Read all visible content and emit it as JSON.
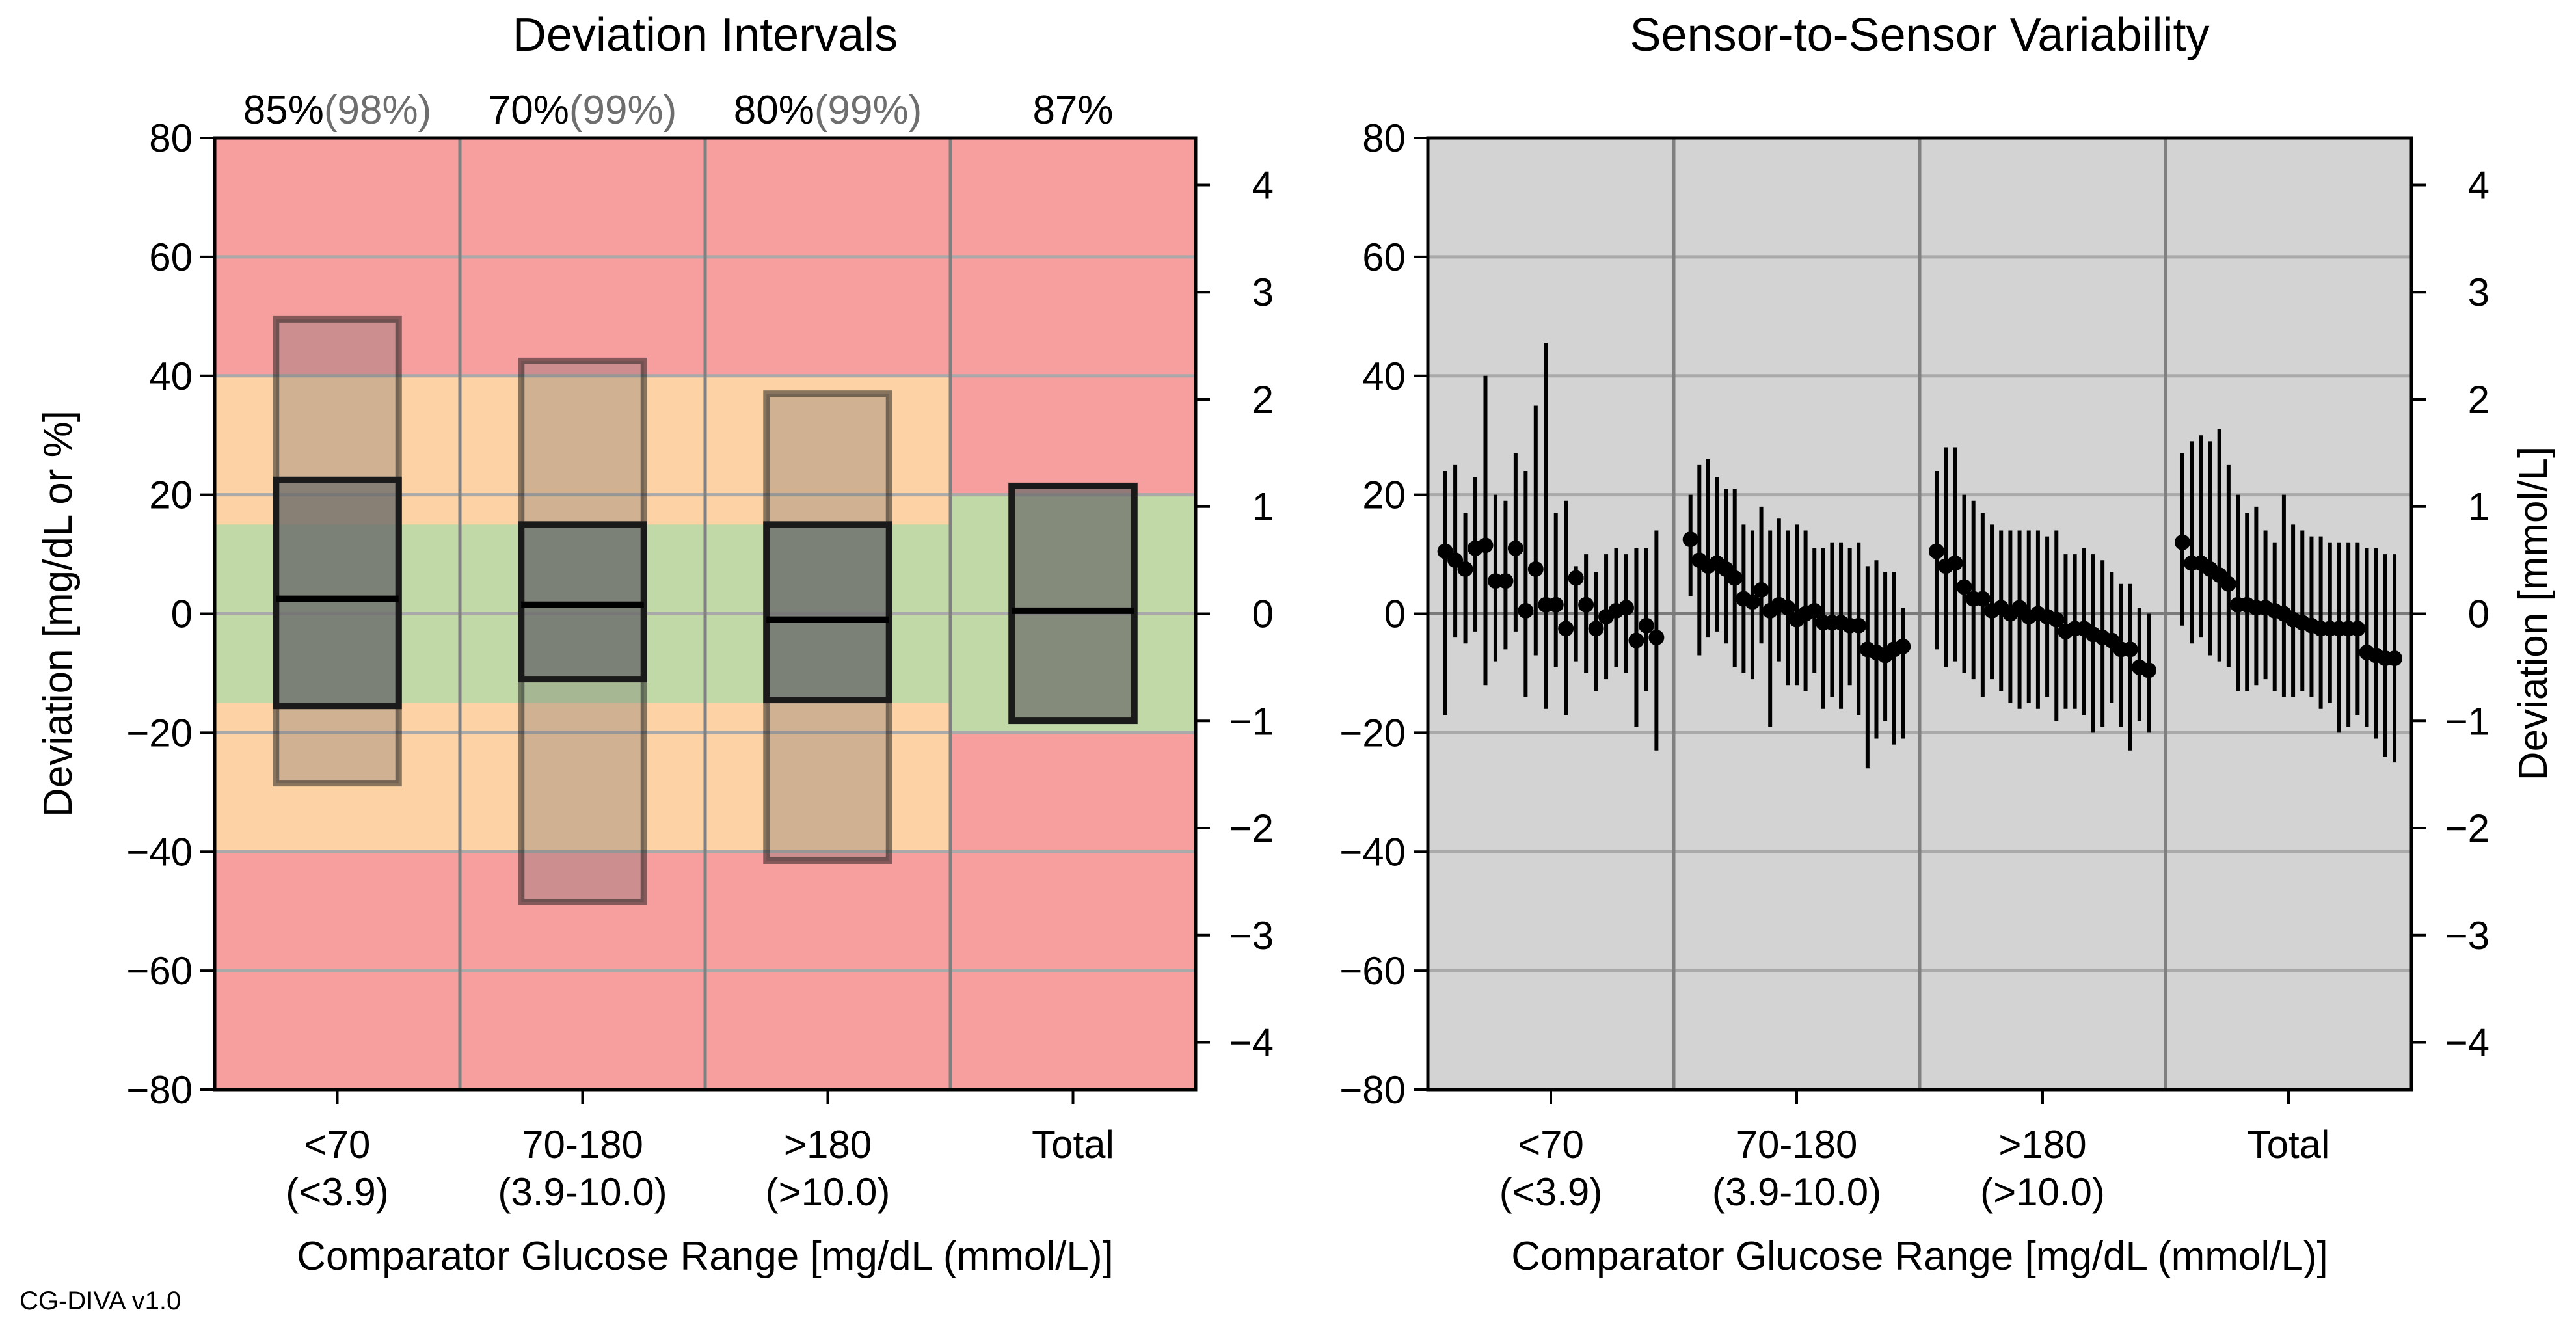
{
  "chart_data": [
    {
      "type": "box",
      "title": "Deviation Intervals",
      "xlabel": "Comparator Glucose Range [mg/dL (mmol/L)]",
      "ylabel": "Deviation [mg/dL or %]",
      "ylim": [
        -80,
        80
      ],
      "yticks": [
        "80",
        "60",
        "40",
        "20",
        "0",
        "−20",
        "−40",
        "−60",
        "−80"
      ],
      "secondary_axis": {
        "ticks": [
          "4",
          "3",
          "2",
          "1",
          "0",
          "−1",
          "−2",
          "−3",
          "−4"
        ]
      },
      "categories": [
        {
          "line1": "<70",
          "line2": "(<3.9)"
        },
        {
          "line1": "70-180",
          "line2": "(3.9-10.0)"
        },
        {
          "line1": ">180",
          "line2": "(>10.0)"
        },
        {
          "line1": "Total",
          "line2": ""
        }
      ],
      "percentages": [
        {
          "main": "85%",
          "secondary": "(98%)"
        },
        {
          "main": "70%",
          "secondary": "(99%)"
        },
        {
          "main": "80%",
          "secondary": "(99%)"
        },
        {
          "main": "87%",
          "secondary": ""
        }
      ],
      "zones": {
        "tight": [
          -15,
          15,
          -20,
          20
        ],
        "wide": [
          -40,
          40
        ],
        "colors": {
          "outer": "#f79e9e",
          "wide": "#fdd2a4",
          "tight": "#c1d9a6"
        }
      },
      "outer_boxes": [
        {
          "low": -28.5,
          "high": 49.5
        },
        {
          "low": -48.5,
          "high": 42.5
        },
        {
          "low": -41.5,
          "high": 37
        },
        null
      ],
      "inner_boxes": [
        {
          "low": -15.5,
          "median": 2.5,
          "high": 22.5
        },
        {
          "low": -11,
          "median": 1.5,
          "high": 15
        },
        {
          "low": -14.5,
          "median": -1,
          "high": 15
        },
        {
          "low": -18,
          "median": 0.5,
          "high": 21.5
        }
      ]
    },
    {
      "type": "errorbar",
      "title": "Sensor-to-Sensor Variability",
      "xlabel": "Comparator Glucose Range [mg/dL (mmol/L)]",
      "ylabel": "Deviation [mmol/L]",
      "ylim": [
        -80,
        80
      ],
      "yticks": [
        "80",
        "60",
        "40",
        "20",
        "0",
        "−20",
        "−40",
        "−60",
        "−80"
      ],
      "secondary_axis": {
        "ticks": [
          "4",
          "3",
          "2",
          "1",
          "0",
          "−1",
          "−2",
          "−3",
          "−4"
        ]
      },
      "categories": [
        {
          "line1": "<70",
          "line2": "(<3.9)"
        },
        {
          "line1": "70-180",
          "line2": "(3.9-10.0)"
        },
        {
          "line1": ">180",
          "line2": "(>10.0)"
        },
        {
          "line1": "Total",
          "line2": ""
        }
      ],
      "series": [
        {
          "group": "<70",
          "points": [
            {
              "y": 10.5,
              "low": -17,
              "high": 24
            },
            {
              "y": 9,
              "low": -4,
              "high": 25
            },
            {
              "y": 7.5,
              "low": -5,
              "high": 17
            },
            {
              "y": 11,
              "low": -3,
              "high": 23
            },
            {
              "y": 11.5,
              "low": -12,
              "high": 40
            },
            {
              "y": 5.5,
              "low": -8,
              "high": 20
            },
            {
              "y": 5.5,
              "low": -6,
              "high": 19
            },
            {
              "y": 11,
              "low": -3,
              "high": 27
            },
            {
              "y": 0.5,
              "low": -14,
              "high": 24
            },
            {
              "y": 7.5,
              "low": -7,
              "high": 35
            },
            {
              "y": 1.5,
              "low": -16,
              "high": 45.5
            },
            {
              "y": 1.5,
              "low": -9,
              "high": 17
            },
            {
              "y": -2.5,
              "low": -17,
              "high": 19
            },
            {
              "y": 6,
              "low": -8,
              "high": 8
            },
            {
              "y": 1.5,
              "low": -10,
              "high": 10
            },
            {
              "y": -2.5,
              "low": -13,
              "high": 7
            },
            {
              "y": -0.5,
              "low": -11,
              "high": 10
            },
            {
              "y": 0.5,
              "low": -9,
              "high": 11
            },
            {
              "y": 1,
              "low": -10,
              "high": 10
            },
            {
              "y": -4.5,
              "low": -19,
              "high": 11
            },
            {
              "y": -2,
              "low": -13,
              "high": 11
            },
            {
              "y": -4,
              "low": -23,
              "high": 14
            }
          ]
        },
        {
          "group": "70-180",
          "points": [
            {
              "y": 12.5,
              "low": 3,
              "high": 20
            },
            {
              "y": 9,
              "low": -7,
              "high": 25
            },
            {
              "y": 8,
              "low": -4,
              "high": 26
            },
            {
              "y": 8.5,
              "low": -3,
              "high": 23
            },
            {
              "y": 7.5,
              "low": -5,
              "high": 21
            },
            {
              "y": 6,
              "low": -9,
              "high": 21
            },
            {
              "y": 2.5,
              "low": -10,
              "high": 15
            },
            {
              "y": 2,
              "low": -11,
              "high": 14
            },
            {
              "y": 4,
              "low": -5,
              "high": 18
            },
            {
              "y": 0.5,
              "low": -19,
              "high": 14
            },
            {
              "y": 1.5,
              "low": -8,
              "high": 16
            },
            {
              "y": 1,
              "low": -12,
              "high": 14
            },
            {
              "y": -1,
              "low": -12,
              "high": 15
            },
            {
              "y": 0,
              "low": -13,
              "high": 14
            },
            {
              "y": 0.5,
              "low": -10,
              "high": 11
            },
            {
              "y": -1.5,
              "low": -16,
              "high": 11
            },
            {
              "y": -1.5,
              "low": -14,
              "high": 12
            },
            {
              "y": -1.5,
              "low": -16,
              "high": 12
            },
            {
              "y": -2,
              "low": -12,
              "high": 11
            },
            {
              "y": -2,
              "low": -17,
              "high": 12
            },
            {
              "y": -6,
              "low": -26,
              "high": 8
            },
            {
              "y": -6.5,
              "low": -21,
              "high": 9
            },
            {
              "y": -7,
              "low": -18,
              "high": 7
            },
            {
              "y": -6,
              "low": -22,
              "high": 7
            },
            {
              "y": -5.5,
              "low": -21,
              "high": 1
            }
          ]
        },
        {
          "group": ">180",
          "points": [
            {
              "y": 10.5,
              "low": -6,
              "high": 24
            },
            {
              "y": 8,
              "low": -9,
              "high": 28
            },
            {
              "y": 8.5,
              "low": -8,
              "high": 28
            },
            {
              "y": 4.5,
              "low": -10,
              "high": 20
            },
            {
              "y": 2.5,
              "low": -11,
              "high": 19
            },
            {
              "y": 2.5,
              "low": -14,
              "high": 17
            },
            {
              "y": 0.5,
              "low": -11,
              "high": 15
            },
            {
              "y": 1,
              "low": -13,
              "high": 14
            },
            {
              "y": 0,
              "low": -15,
              "high": 14
            },
            {
              "y": 1,
              "low": -16,
              "high": 14
            },
            {
              "y": -0.5,
              "low": -15,
              "high": 14
            },
            {
              "y": 0,
              "low": -16,
              "high": 14
            },
            {
              "y": -0.5,
              "low": -14,
              "high": 13
            },
            {
              "y": -1,
              "low": -18,
              "high": 14
            },
            {
              "y": -3,
              "low": -16,
              "high": 10
            },
            {
              "y": -2.5,
              "low": -16,
              "high": 10
            },
            {
              "y": -2.5,
              "low": -17,
              "high": 11
            },
            {
              "y": -3.5,
              "low": -20,
              "high": 10
            },
            {
              "y": -4,
              "low": -19,
              "high": 9
            },
            {
              "y": -4.5,
              "low": -15,
              "high": 7
            },
            {
              "y": -6,
              "low": -19,
              "high": 5
            },
            {
              "y": -6,
              "low": -23,
              "high": 5
            },
            {
              "y": -9,
              "low": -18,
              "high": 1
            },
            {
              "y": -9.5,
              "low": -20,
              "high": 0
            }
          ]
        },
        {
          "group": "Total",
          "points": [
            {
              "y": 12,
              "low": -2,
              "high": 27
            },
            {
              "y": 8.5,
              "low": -5,
              "high": 29
            },
            {
              "y": 8.5,
              "low": -4,
              "high": 30
            },
            {
              "y": 7.5,
              "low": -7,
              "high": 29
            },
            {
              "y": 6.5,
              "low": -8,
              "high": 31
            },
            {
              "y": 5,
              "low": -9,
              "high": 25
            },
            {
              "y": 1.5,
              "low": -13,
              "high": 20
            },
            {
              "y": 1.5,
              "low": -13,
              "high": 17
            },
            {
              "y": 1,
              "low": -12,
              "high": 18
            },
            {
              "y": 1,
              "low": -11,
              "high": 14
            },
            {
              "y": 0.5,
              "low": -13,
              "high": 12
            },
            {
              "y": 0,
              "low": -14,
              "high": 20
            },
            {
              "y": -1,
              "low": -14,
              "high": 15
            },
            {
              "y": -1.5,
              "low": -13,
              "high": 14
            },
            {
              "y": -2,
              "low": -14,
              "high": 13
            },
            {
              "y": -2.5,
              "low": -16,
              "high": 13
            },
            {
              "y": -2.5,
              "low": -15,
              "high": 12
            },
            {
              "y": -2.5,
              "low": -20,
              "high": 12
            },
            {
              "y": -2.5,
              "low": -19,
              "high": 12
            },
            {
              "y": -2.5,
              "low": -17,
              "high": 12
            },
            {
              "y": -6.5,
              "low": -19,
              "high": 11
            },
            {
              "y": -7,
              "low": -21,
              "high": 11
            },
            {
              "y": -7.5,
              "low": -24,
              "high": 10
            },
            {
              "y": -7.5,
              "low": -25,
              "high": 10
            }
          ]
        }
      ]
    }
  ],
  "footer": "CG-DIVA v1.0"
}
